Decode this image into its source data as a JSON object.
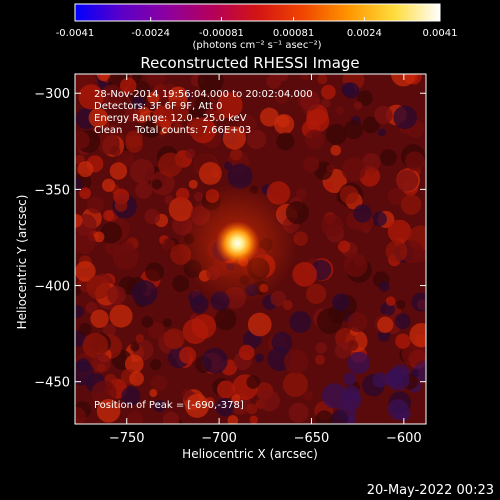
{
  "colorbar": {
    "tick_labels": [
      "-0.0041",
      "-0.0024",
      "-0.00081",
      "0.00081",
      "0.0024",
      "0.0041"
    ],
    "tick_values": [
      -0.0041,
      -0.0024,
      -0.00081,
      0.00081,
      0.0024,
      0.0041
    ],
    "range": [
      -0.0041,
      0.0041
    ],
    "unit_label": "(photons cm⁻² s⁻¹ asec⁻²)",
    "colors": [
      "#0000ff",
      "#5a00c8",
      "#8c00a0",
      "#b4005a",
      "#d21414",
      "#f04600",
      "#ff9600",
      "#ffdc3c",
      "#ffffff"
    ]
  },
  "chart_data": {
    "type": "heatmap",
    "title": "Reconstructed RHESSI Image",
    "xlabel": "Heliocentric X (arcsec)",
    "ylabel": "Heliocentric Y (arcsec)",
    "xlim": [
      -778,
      -588
    ],
    "ylim": [
      -472,
      -290
    ],
    "x_ticks": [
      -750,
      -700,
      -650,
      -600
    ],
    "x_tick_labels": [
      "−750",
      "−700",
      "−650",
      "−600"
    ],
    "y_ticks": [
      -300,
      -350,
      -400,
      -450
    ],
    "y_tick_labels": [
      "−300",
      "−350",
      "−400",
      "−450"
    ],
    "peak": [
      -690,
      -378
    ],
    "annotations": {
      "time_range": "28-Nov-2014 19:56:04.000 to 20:02:04.000",
      "detectors": "Detectors: 3F 6F 9F, Att 0",
      "energy": "Energy Range: 12.0 - 25.0 keV",
      "clean": "Clean    Total counts: 7.66E+03",
      "peak_position": "Position of Peak = [-690,-378]"
    }
  },
  "footer": {
    "timestamp": "20-May-2022 00:23"
  }
}
